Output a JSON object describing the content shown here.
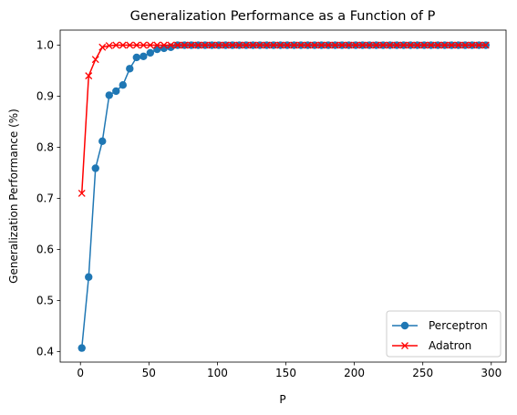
{
  "chart_data": {
    "type": "line",
    "title": "Generalization Performance as a Function of P",
    "xlabel": "P",
    "ylabel": "Generalization Performance (%)",
    "xlim": [
      -14.8,
      310.8
    ],
    "ylim": [
      0.3795,
      1.0295
    ],
    "xticks": [
      0,
      50,
      100,
      150,
      200,
      250,
      300
    ],
    "yticks": [
      0.4,
      0.5,
      0.6,
      0.7,
      0.8,
      0.9,
      1.0
    ],
    "xtick_labels": [
      "0",
      "50",
      "100",
      "150",
      "200",
      "250",
      "300"
    ],
    "ytick_labels": [
      "0.4",
      "0.5",
      "0.6",
      "0.7",
      "0.8",
      "0.9",
      "1.0"
    ],
    "grid": false,
    "legend_position": "lower-right",
    "x": [
      1,
      6,
      11,
      16,
      21,
      26,
      31,
      36,
      41,
      46,
      51,
      56,
      61,
      66,
      71,
      76,
      81,
      86,
      91,
      96,
      101,
      106,
      111,
      116,
      121,
      126,
      131,
      136,
      141,
      146,
      151,
      156,
      161,
      166,
      171,
      176,
      181,
      186,
      191,
      196,
      201,
      206,
      211,
      216,
      221,
      226,
      231,
      236,
      241,
      246,
      251,
      256,
      261,
      266,
      271,
      276,
      281,
      286,
      291,
      296
    ],
    "series": [
      {
        "name": "Perceptron",
        "color": "#1f77b4",
        "marker": "circle",
        "values": [
          0.407,
          0.546,
          0.759,
          0.812,
          0.902,
          0.91,
          0.922,
          0.954,
          0.976,
          0.978,
          0.985,
          0.992,
          0.994,
          0.996,
          1.0,
          1.0,
          1.0,
          1.0,
          1.0,
          1.0,
          1.0,
          1.0,
          1.0,
          1.0,
          1.0,
          1.0,
          1.0,
          1.0,
          1.0,
          1.0,
          1.0,
          1.0,
          1.0,
          1.0,
          1.0,
          1.0,
          1.0,
          1.0,
          1.0,
          1.0,
          1.0,
          1.0,
          1.0,
          1.0,
          1.0,
          1.0,
          1.0,
          1.0,
          1.0,
          1.0,
          1.0,
          1.0,
          1.0,
          1.0,
          1.0,
          1.0,
          1.0,
          1.0,
          1.0,
          1.0
        ]
      },
      {
        "name": "Adatron",
        "color": "#ff0000",
        "marker": "x",
        "values": [
          0.71,
          0.94,
          0.972,
          0.996,
          0.999,
          1.0,
          1.0,
          1.0,
          1.0,
          1.0,
          1.0,
          1.0,
          1.0,
          1.0,
          1.0,
          1.0,
          1.0,
          1.0,
          1.0,
          1.0,
          1.0,
          1.0,
          1.0,
          1.0,
          1.0,
          1.0,
          1.0,
          1.0,
          1.0,
          1.0,
          1.0,
          1.0,
          1.0,
          1.0,
          1.0,
          1.0,
          1.0,
          1.0,
          1.0,
          1.0,
          1.0,
          1.0,
          1.0,
          1.0,
          1.0,
          1.0,
          1.0,
          1.0,
          1.0,
          1.0,
          1.0,
          1.0,
          1.0,
          1.0,
          1.0,
          1.0,
          1.0,
          1.0,
          1.0,
          1.0
        ]
      }
    ]
  }
}
